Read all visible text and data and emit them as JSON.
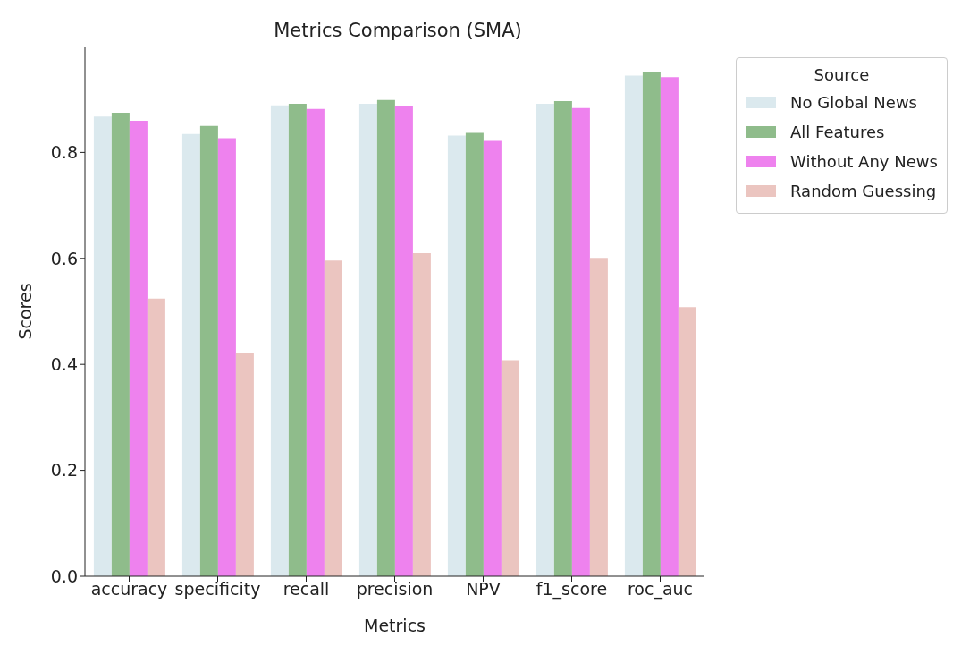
{
  "chart_data": {
    "type": "bar",
    "title": "Metrics Comparison (SMA)",
    "xlabel": "Metrics",
    "ylabel": "Scores",
    "legend_title": "Source",
    "legend": "right",
    "categories": [
      "accuracy",
      "specificity",
      "recall",
      "precision",
      "NPV",
      "f1_score",
      "roc_auc"
    ],
    "series": [
      {
        "name": "No Global News",
        "color": "#dbe9ee",
        "values": [
          0.868,
          0.835,
          0.889,
          0.892,
          0.832,
          0.892,
          0.945
        ]
      },
      {
        "name": "All Features",
        "color": "#8fbc8b",
        "values": [
          0.875,
          0.85,
          0.892,
          0.899,
          0.837,
          0.897,
          0.952
        ]
      },
      {
        "name": "Without Any News",
        "color": "#ee82ee",
        "values": [
          0.86,
          0.827,
          0.882,
          0.887,
          0.822,
          0.884,
          0.942
        ]
      },
      {
        "name": "Random Guessing",
        "color": "#ebc5c0",
        "values": [
          0.524,
          0.421,
          0.596,
          0.61,
          0.408,
          0.601,
          0.508
        ]
      }
    ],
    "ylim": [
      0,
      1.0
    ],
    "yticks": [
      {
        "value": 0,
        "label": "0.0"
      },
      0.2,
      0.4,
      0.6,
      0.8
    ],
    "grid": false
  }
}
